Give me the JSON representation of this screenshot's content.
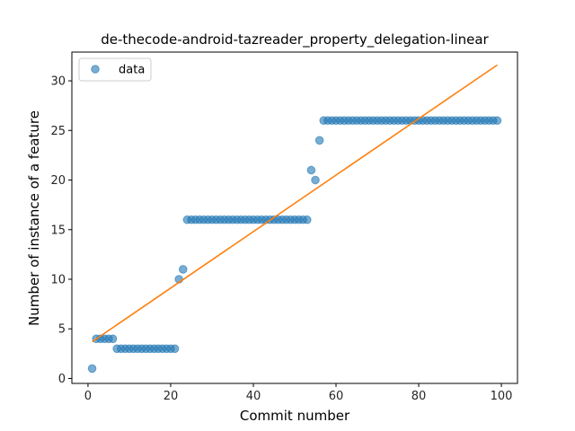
{
  "chart_data": {
    "type": "scatter",
    "title": "de-thecode-android-tazreader_property_delegation-linear",
    "xlabel": "Commit number",
    "ylabel": "Number of instance of a feature",
    "xlim": [
      -3.9,
      103.9
    ],
    "ylim": [
      -0.5,
      32.9
    ],
    "x_ticks": [
      0,
      20,
      40,
      60,
      80,
      100
    ],
    "y_ticks": [
      0,
      5,
      10,
      15,
      20,
      25,
      30
    ],
    "legend": {
      "placement": "top-left",
      "entries": [
        "data"
      ]
    },
    "grid": false,
    "colors": {
      "points": "#1f77b4",
      "fit_line": "#ff7f0e"
    },
    "series": [
      {
        "name": "data",
        "kind": "scatter",
        "x": [
          1,
          2,
          3,
          4,
          5,
          6,
          7,
          8,
          9,
          10,
          11,
          12,
          13,
          14,
          15,
          16,
          17,
          18,
          19,
          20,
          21,
          22,
          23,
          24,
          25,
          26,
          27,
          28,
          29,
          30,
          31,
          32,
          33,
          34,
          35,
          36,
          37,
          38,
          39,
          40,
          41,
          42,
          43,
          44,
          45,
          46,
          47,
          48,
          49,
          50,
          51,
          52,
          53,
          54,
          55,
          56,
          57,
          58,
          59,
          60,
          61,
          62,
          63,
          64,
          65,
          66,
          67,
          68,
          69,
          70,
          71,
          72,
          73,
          74,
          75,
          76,
          77,
          78,
          79,
          80,
          81,
          82,
          83,
          84,
          85,
          86,
          87,
          88,
          89,
          90,
          91,
          92,
          93,
          94,
          95,
          96,
          97,
          98,
          99
        ],
        "y": [
          1,
          4,
          4,
          4,
          4,
          4,
          3,
          3,
          3,
          3,
          3,
          3,
          3,
          3,
          3,
          3,
          3,
          3,
          3,
          3,
          3,
          10,
          11,
          16,
          16,
          16,
          16,
          16,
          16,
          16,
          16,
          16,
          16,
          16,
          16,
          16,
          16,
          16,
          16,
          16,
          16,
          16,
          16,
          16,
          16,
          16,
          16,
          16,
          16,
          16,
          16,
          16,
          16,
          21,
          20,
          24,
          26,
          26,
          26,
          26,
          26,
          26,
          26,
          26,
          26,
          26,
          26,
          26,
          26,
          26,
          26,
          26,
          26,
          26,
          26,
          26,
          26,
          26,
          26,
          26,
          26,
          26,
          26,
          26,
          26,
          26,
          26,
          26,
          26,
          26,
          26,
          26,
          26,
          26,
          26,
          26,
          26,
          26,
          26
        ]
      },
      {
        "kind": "line",
        "x": [
          1,
          99
        ],
        "y": [
          3.7,
          31.6
        ]
      }
    ]
  }
}
